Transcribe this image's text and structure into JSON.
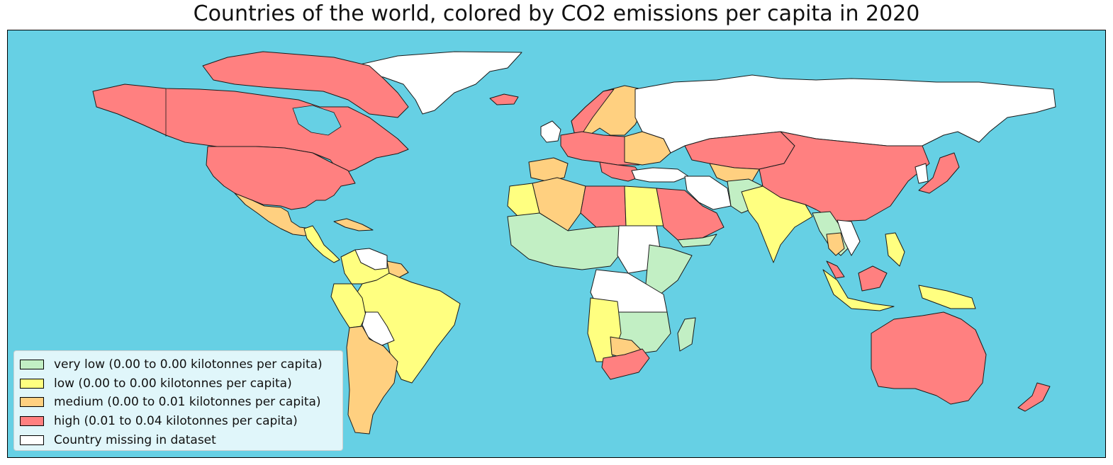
{
  "title": "Countries of the world, colored by CO2 emissions per capita in 2020",
  "colors": {
    "ocean": "#66d0e4",
    "very_low": "#c2efc4",
    "low": "#ffff80",
    "medium": "#ffd080",
    "high": "#ff8080",
    "missing": "#ffffff"
  },
  "legend": {
    "items": [
      {
        "key": "very_low",
        "label": "very low (0.00 to 0.00 kilotonnes per capita)",
        "color": "#c2efc4"
      },
      {
        "key": "low",
        "label": "low (0.00 to 0.00 kilotonnes per capita)",
        "color": "#ffff80"
      },
      {
        "key": "medium",
        "label": "medium (0.00 to 0.01 kilotonnes per capita)",
        "color": "#ffd080"
      },
      {
        "key": "high",
        "label": "high (0.01 to 0.04 kilotonnes per capita)",
        "color": "#ff8080"
      },
      {
        "key": "missing",
        "label": "Country missing in dataset",
        "color": "#ffffff"
      }
    ]
  }
}
